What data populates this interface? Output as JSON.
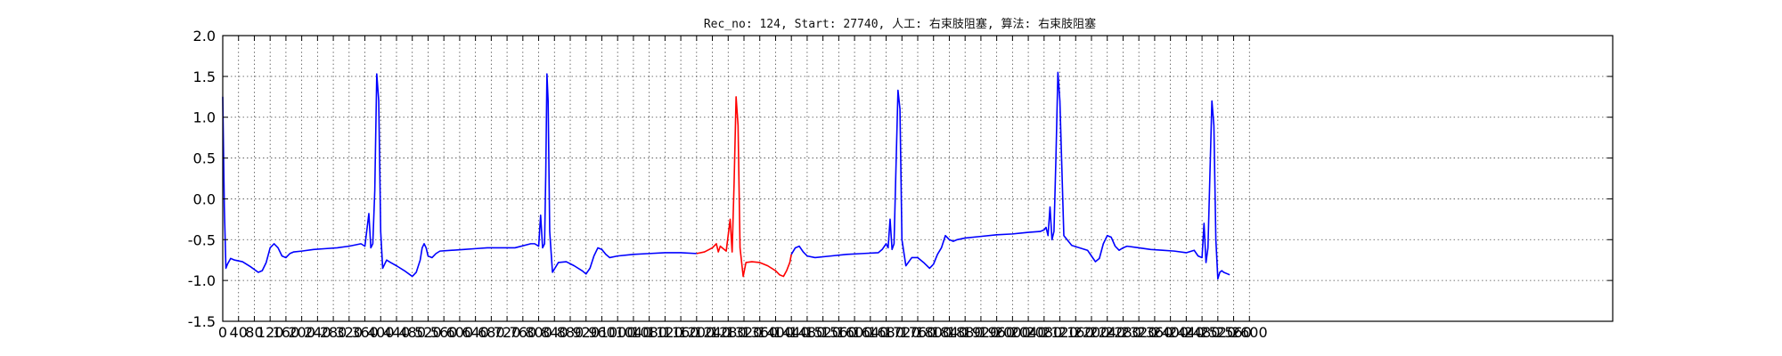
{
  "chart_data": {
    "type": "line",
    "title": "Rec_no: 124, Start: 27740, 人工: 右束肢阻塞, 算法: 右束肢阻塞",
    "xlabel": "",
    "ylabel": "",
    "xlim": [
      0,
      3520
    ],
    "ylim": [
      -1.5,
      2.0
    ],
    "grid": true,
    "yticks": [
      -1.5,
      -1.0,
      -0.5,
      0.0,
      0.5,
      1.0,
      1.5,
      2.0
    ],
    "ytick_labels": [
      "-1.5",
      "-1.0",
      "-0.5",
      "0.0",
      "0.5",
      "1.0",
      "1.5",
      "2.0"
    ],
    "xticks": [
      0,
      40,
      80,
      120,
      160,
      200,
      240,
      280,
      320,
      360,
      400,
      440,
      480,
      520,
      560,
      600,
      640,
      680,
      720,
      760,
      800,
      840,
      880,
      920,
      960,
      1000,
      1040,
      1080,
      1120,
      1160,
      1200,
      1240,
      1280,
      1320,
      1360,
      1400,
      1440,
      1480,
      1520,
      1560,
      1600,
      1640,
      1680,
      1720,
      1760,
      1800,
      1840,
      1880,
      1920,
      1960,
      2000,
      2040,
      2080,
      2120,
      2160,
      2200,
      2240,
      2280,
      2320,
      2360,
      2400,
      2440,
      2480,
      2520,
      2560,
      2600
    ],
    "xtick_labels": [
      "0",
      "40",
      "80",
      "120",
      "160",
      "200",
      "240",
      "280",
      "320",
      "360",
      "400",
      "440",
      "480",
      "520",
      "560",
      "600",
      "640",
      "680",
      "720",
      "760",
      "800",
      "840",
      "880",
      "920",
      "960",
      "1000",
      "1040",
      "1080",
      "1120",
      "1160",
      "1200",
      "1240",
      "1280",
      "1320",
      "1360",
      "1400",
      "1440",
      "1480",
      "1520",
      "1560",
      "1600",
      "1640",
      "1680",
      "1720",
      "1760",
      "1800",
      "1840",
      "1880",
      "1920",
      "1960",
      "2000",
      "2040",
      "2080",
      "2120",
      "2160",
      "2200",
      "2240",
      "2280",
      "2320",
      "2360",
      "2400",
      "2440",
      "2480",
      "2520",
      "2560",
      "2600"
    ],
    "series": [
      {
        "color": "#0000ff",
        "x": [
          0,
          4,
          8,
          12,
          20,
          30,
          50,
          70,
          90,
          100,
          110,
          120,
          130,
          140,
          150,
          160,
          170,
          180,
          200,
          230,
          260,
          290,
          320,
          350,
          360,
          370,
          375,
          380,
          385,
          390,
          395,
          400,
          405,
          410,
          415,
          425,
          440,
          460,
          480,
          490,
          500,
          505,
          510,
          515,
          520,
          530,
          540,
          550,
          580,
          610,
          640,
          670,
          700,
          740,
          780,
          790,
          800,
          805,
          810,
          815,
          818,
          821,
          824,
          828,
          835,
          850,
          870,
          890,
          910,
          920,
          930,
          940,
          950,
          960,
          970,
          980,
          1000,
          1040,
          1080,
          1120,
          1160,
          1200
        ],
        "y": [
          1.25,
          -0.1,
          -0.85,
          -0.8,
          -0.73,
          -0.75,
          -0.77,
          -0.83,
          -0.9,
          -0.88,
          -0.78,
          -0.6,
          -0.55,
          -0.6,
          -0.7,
          -0.72,
          -0.67,
          -0.65,
          -0.64,
          -0.62,
          -0.61,
          -0.6,
          -0.58,
          -0.55,
          -0.58,
          -0.18,
          -0.6,
          -0.55,
          0.1,
          1.53,
          1.2,
          -0.4,
          -0.85,
          -0.8,
          -0.75,
          -0.78,
          -0.82,
          -0.88,
          -0.95,
          -0.9,
          -0.75,
          -0.6,
          -0.55,
          -0.6,
          -0.7,
          -0.72,
          -0.67,
          -0.64,
          -0.63,
          -0.62,
          -0.61,
          -0.6,
          -0.6,
          -0.6,
          -0.55,
          -0.55,
          -0.58,
          -0.2,
          -0.6,
          -0.55,
          0.3,
          1.53,
          1.2,
          -0.4,
          -0.9,
          -0.78,
          -0.77,
          -0.82,
          -0.88,
          -0.92,
          -0.85,
          -0.7,
          -0.6,
          -0.62,
          -0.68,
          -0.72,
          -0.7,
          -0.68,
          -0.67,
          -0.66,
          -0.66,
          -0.67
        ]
      },
      {
        "color": "#ff0000",
        "x": [
          1200,
          1220,
          1240,
          1250,
          1255,
          1260,
          1265,
          1275,
          1285,
          1290,
          1295,
          1300,
          1305,
          1310,
          1318,
          1325,
          1340,
          1360,
          1380,
          1400,
          1410,
          1420,
          1428,
          1436,
          1440
        ],
        "y": [
          -0.67,
          -0.65,
          -0.6,
          -0.55,
          -0.65,
          -0.58,
          -0.6,
          -0.64,
          -0.25,
          -0.65,
          0.2,
          1.25,
          0.9,
          -0.6,
          -0.95,
          -0.78,
          -0.77,
          -0.78,
          -0.82,
          -0.88,
          -0.93,
          -0.95,
          -0.88,
          -0.78,
          -0.68
        ]
      },
      {
        "color": "#0000ff",
        "x": [
          1440,
          1450,
          1460,
          1470,
          1480,
          1500,
          1540,
          1580,
          1620,
          1660,
          1670,
          1680,
          1685,
          1690,
          1695,
          1700,
          1705,
          1710,
          1715,
          1720,
          1730,
          1745,
          1760,
          1775,
          1790,
          1800,
          1810,
          1820,
          1830,
          1840,
          1850,
          1860,
          1880,
          1920,
          1960,
          2000,
          2040,
          2070,
          2080,
          2085,
          2090,
          2095,
          2100,
          2105,
          2110,
          2115,
          2120,
          2130,
          2150,
          2170,
          2190,
          2200,
          2210,
          2220,
          2230,
          2240,
          2250,
          2260,
          2270,
          2280,
          2290,
          2320,
          2350,
          2380,
          2410,
          2440,
          2460,
          2470,
          2480,
          2485,
          2490,
          2495,
          2500,
          2505,
          2510,
          2515,
          2520,
          2525,
          2530,
          2535,
          2545,
          2550
        ],
        "y": [
          -0.68,
          -0.6,
          -0.58,
          -0.65,
          -0.7,
          -0.72,
          -0.7,
          -0.68,
          -0.67,
          -0.66,
          -0.62,
          -0.55,
          -0.6,
          -0.25,
          -0.62,
          -0.55,
          0.4,
          1.33,
          1.1,
          -0.5,
          -0.82,
          -0.72,
          -0.72,
          -0.78,
          -0.85,
          -0.8,
          -0.68,
          -0.6,
          -0.45,
          -0.5,
          -0.52,
          -0.5,
          -0.48,
          -0.46,
          -0.44,
          -0.43,
          -0.41,
          -0.4,
          -0.38,
          -0.35,
          -0.45,
          -0.1,
          -0.5,
          -0.4,
          0.5,
          1.55,
          1.2,
          -0.45,
          -0.57,
          -0.6,
          -0.63,
          -0.7,
          -0.77,
          -0.73,
          -0.55,
          -0.45,
          -0.47,
          -0.58,
          -0.63,
          -0.6,
          -0.58,
          -0.6,
          -0.62,
          -0.63,
          -0.64,
          -0.66,
          -0.63,
          -0.7,
          -0.72,
          -0.3,
          -0.78,
          -0.6,
          0.3,
          1.2,
          0.9,
          -0.5,
          -0.98,
          -0.9,
          -0.88,
          -0.9,
          -0.92,
          -0.93
        ]
      }
    ]
  }
}
